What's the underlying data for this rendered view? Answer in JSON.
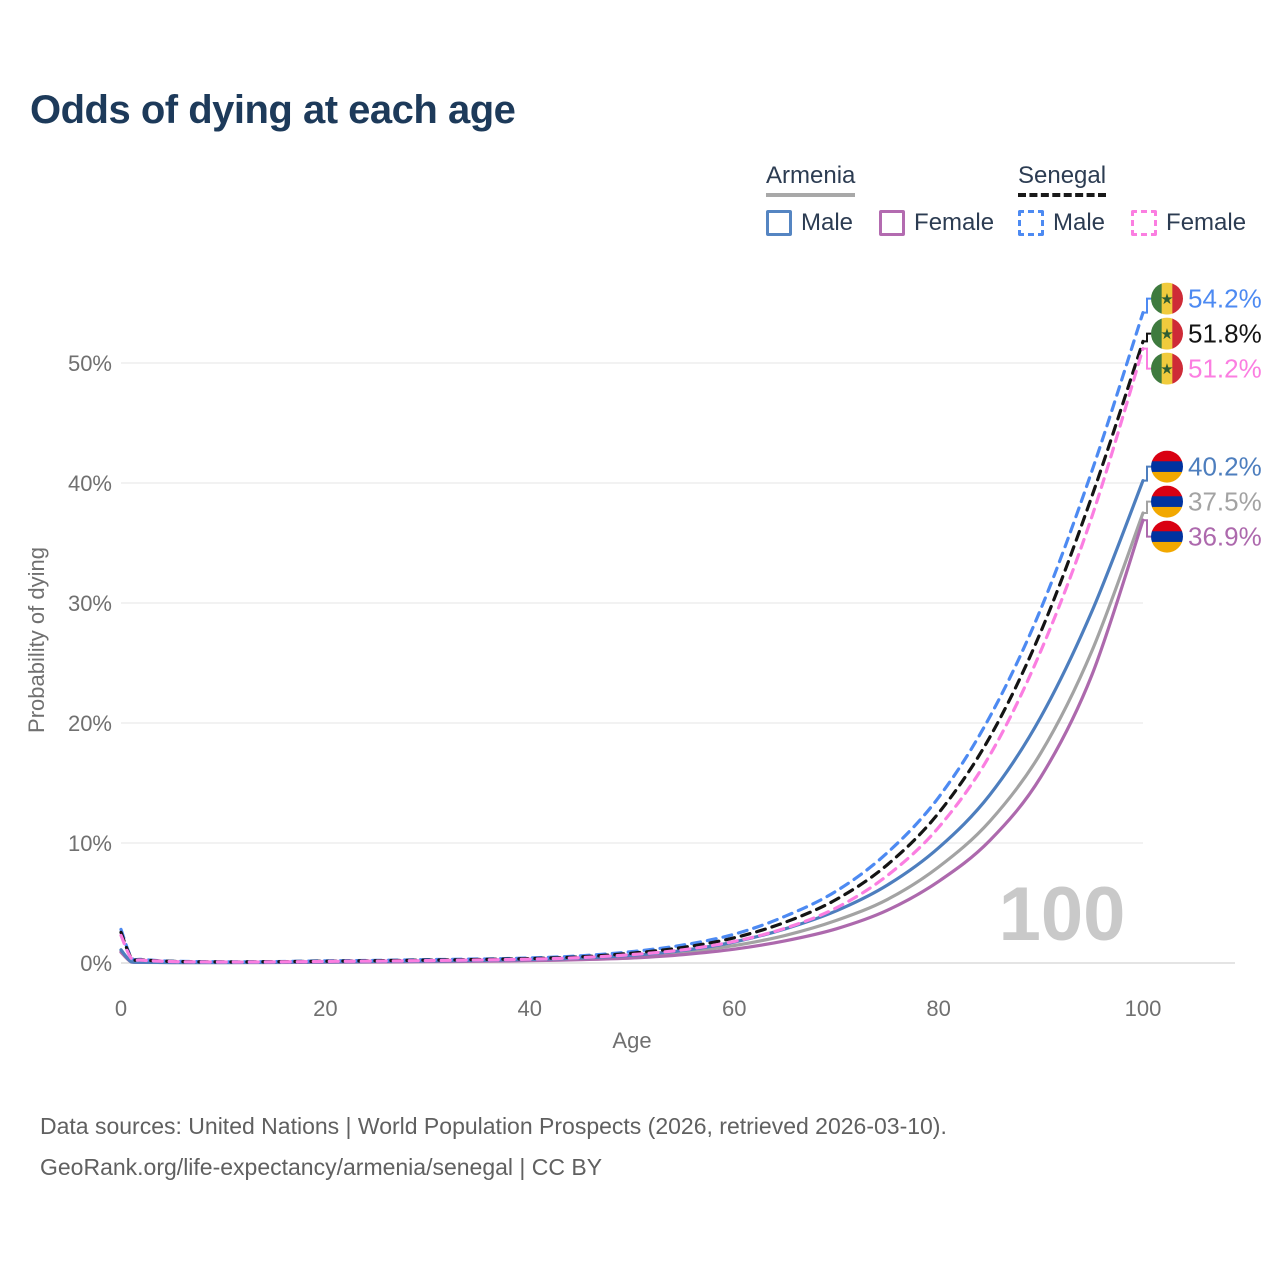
{
  "title": "Odds of dying at each age",
  "legend": {
    "groups": [
      {
        "label": "Armenia",
        "slug": "armenia",
        "line_style": "solid",
        "underline_color": "#a8a8a8",
        "items": [
          {
            "label": "Male",
            "slug": "male",
            "color": "#5585c2",
            "dashed": false
          },
          {
            "label": "Female",
            "slug": "female",
            "color": "#b36bb0",
            "dashed": false
          }
        ]
      },
      {
        "label": "Senegal",
        "slug": "senegal",
        "line_style": "dashed",
        "underline_color": "#1a1a1a",
        "items": [
          {
            "label": "Male",
            "slug": "male",
            "color": "#4d8af2",
            "dashed": true
          },
          {
            "label": "Female",
            "slug": "female",
            "color": "#fb7ee1",
            "dashed": true
          }
        ]
      }
    ]
  },
  "chart_data": {
    "type": "line",
    "title": "Odds of dying at each age",
    "xlabel": "Age",
    "ylabel": "Probability of dying",
    "xlim": [
      0,
      100
    ],
    "ylim_pct": [
      0,
      56
    ],
    "x_ticks": [
      0,
      20,
      40,
      60,
      80,
      100
    ],
    "y_ticks_pct": [
      0,
      10,
      20,
      30,
      40,
      50
    ],
    "grid": "horizontal",
    "legend_position": "top-right",
    "watermark": "100",
    "ages": [
      0,
      1,
      2,
      5,
      10,
      15,
      20,
      25,
      30,
      35,
      40,
      45,
      50,
      55,
      60,
      65,
      70,
      75,
      80,
      85,
      90,
      95,
      100
    ],
    "series": [
      {
        "name": "Armenia Male",
        "slug": "armenia-male",
        "flag": "armenia",
        "color": "#4d7ebe",
        "dashed": false,
        "end_label": "40.2%",
        "values_pct": [
          1.1,
          0.1,
          0.06,
          0.04,
          0.04,
          0.06,
          0.1,
          0.13,
          0.17,
          0.22,
          0.3,
          0.42,
          0.65,
          1.05,
          1.75,
          2.85,
          4.35,
          6.5,
          9.6,
          14.0,
          20.5,
          29.3,
          40.2
        ]
      },
      {
        "name": "Armenia Female",
        "slug": "armenia-female",
        "flag": "armenia",
        "color": "#ad69ad",
        "dashed": false,
        "end_label": "36.9%",
        "values_pct": [
          0.9,
          0.08,
          0.05,
          0.035,
          0.03,
          0.04,
          0.06,
          0.08,
          0.11,
          0.14,
          0.19,
          0.28,
          0.42,
          0.7,
          1.15,
          1.85,
          2.85,
          4.4,
          6.8,
          10.2,
          15.5,
          24.0,
          36.9
        ]
      },
      {
        "name": "Armenia Both sexes",
        "slug": "armenia-both",
        "flag": "armenia",
        "color": "#a3a3a3",
        "dashed": false,
        "end_label": "37.5%",
        "values_pct": [
          1.0,
          0.09,
          0.055,
          0.038,
          0.035,
          0.05,
          0.08,
          0.11,
          0.14,
          0.18,
          0.25,
          0.36,
          0.55,
          0.88,
          1.45,
          2.3,
          3.55,
          5.3,
          8.0,
          11.8,
          17.5,
          26.0,
          37.5
        ]
      },
      {
        "name": "Senegal Male",
        "slug": "senegal-male",
        "flag": "senegal",
        "color": "#4d8af2",
        "dashed": true,
        "end_label": "54.2%",
        "values_pct": [
          2.8,
          0.5,
          0.3,
          0.15,
          0.1,
          0.12,
          0.18,
          0.22,
          0.28,
          0.33,
          0.42,
          0.6,
          0.95,
          1.5,
          2.4,
          3.9,
          6.0,
          9.2,
          13.8,
          20.5,
          29.5,
          41.0,
          54.2
        ]
      },
      {
        "name": "Senegal Both sexes",
        "slug": "senegal-both",
        "flag": "senegal",
        "color": "#141414",
        "dashed": true,
        "end_label": "51.8%",
        "values_pct": [
          2.55,
          0.45,
          0.27,
          0.13,
          0.09,
          0.11,
          0.15,
          0.19,
          0.24,
          0.29,
          0.37,
          0.52,
          0.82,
          1.3,
          2.1,
          3.4,
          5.3,
          8.2,
          12.5,
          18.8,
          27.6,
          38.9,
          51.8
        ]
      },
      {
        "name": "Senegal Female",
        "slug": "senegal-female",
        "flag": "senegal",
        "color": "#fb7ee1",
        "dashed": true,
        "end_label": "51.2%",
        "values_pct": [
          2.3,
          0.4,
          0.24,
          0.12,
          0.08,
          0.09,
          0.13,
          0.16,
          0.2,
          0.25,
          0.32,
          0.45,
          0.7,
          1.1,
          1.8,
          2.9,
          4.6,
          7.3,
          11.3,
          17.3,
          26.0,
          37.2,
          51.2
        ]
      }
    ]
  },
  "flags": {
    "armenia": {
      "stripes": [
        "#d90012",
        "#0033a0",
        "#f2a800"
      ]
    },
    "senegal": {
      "stripes": [
        "#3e7a3e",
        "#f0cb3d",
        "#ce2b37"
      ],
      "star": "#2f5e33"
    }
  },
  "footer": {
    "line1": "Data sources: United Nations | World Population Prospects (2026, retrieved 2026-03-10).",
    "line2": "GeoRank.org/life-expectancy/armenia/senegal | CC BY"
  }
}
